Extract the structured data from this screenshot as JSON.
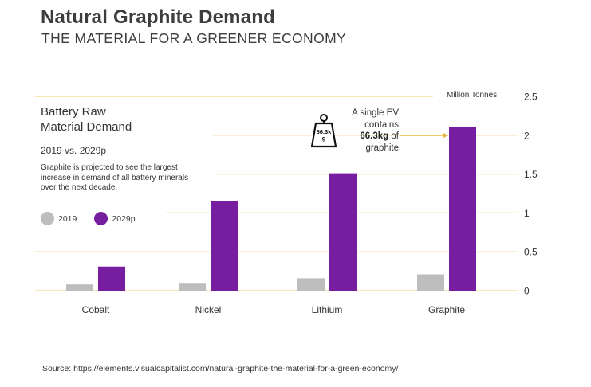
{
  "header": {
    "title": "Natural Graphite Demand",
    "subtitle": "THE MATERIAL FOR A GREENER ECONOMY"
  },
  "info": {
    "heading_line1": "Battery Raw",
    "heading_line2": "Material Demand",
    "years": "2019 vs. 2029p",
    "description": "Graphite is projected to see the largest increase in demand of all battery minerals over the next decade."
  },
  "annotation": {
    "line1": "A single EV",
    "line2": "contains",
    "bold": "66.3kg",
    "line3_rest": " of",
    "line4": "graphite",
    "weight_icon_text_1": "66.3k",
    "weight_icon_text_2": "g",
    "weight_icon": "weight-icon"
  },
  "source": "Source: https://elements.visualcapitalist.com/natural-graphite-the-material-for-a-green-economy/",
  "colors": {
    "series_2019": "#bdbdbd",
    "series_2029p": "#771d9f",
    "grid": "#f5d78a",
    "arrow": "#e8b73a"
  },
  "chart_data": {
    "type": "bar",
    "title": "Battery Raw Material Demand",
    "subtitle": "2019 vs. 2029p",
    "xlabel": "",
    "ylabel": "Million Tonnes",
    "categories": [
      "Cobalt",
      "Nickel",
      "Lithium",
      "Graphite"
    ],
    "series": [
      {
        "name": "2019",
        "values": [
          0.08,
          0.09,
          0.16,
          0.21
        ]
      },
      {
        "name": "2029p",
        "values": [
          0.31,
          1.15,
          1.51,
          2.11
        ]
      }
    ],
    "ylim": [
      0,
      2.5
    ],
    "yticks": [
      0,
      0.5,
      1,
      1.5,
      2,
      2.5
    ],
    "ytick_labels": [
      "0",
      "0.5",
      "1",
      "1.5",
      "2",
      "2.5"
    ],
    "grid": true,
    "legend_position": "left",
    "axis_position": "right"
  }
}
